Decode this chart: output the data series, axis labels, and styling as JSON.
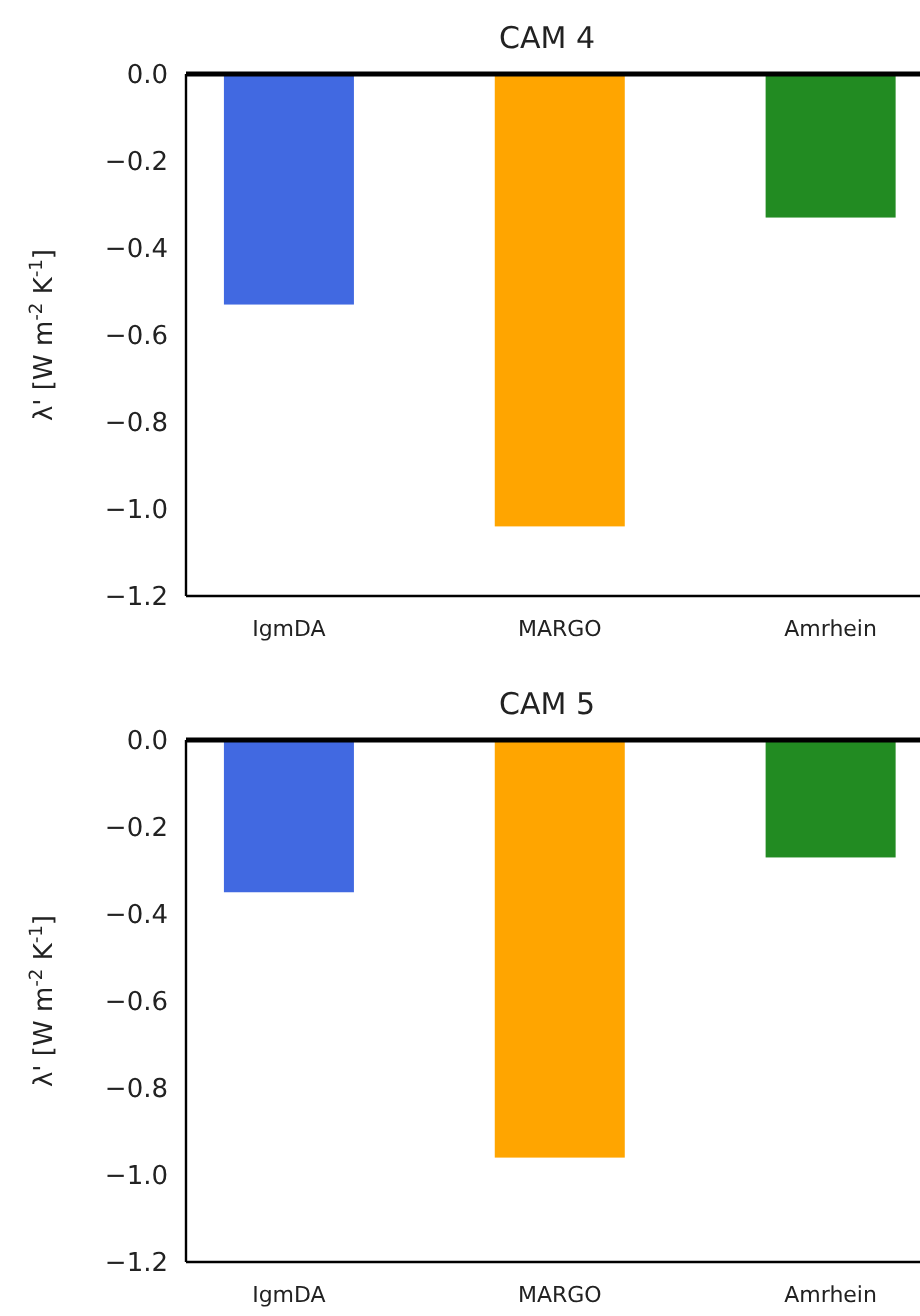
{
  "chart_data": [
    {
      "type": "bar",
      "title": "CAM 4",
      "ylabel": "λ' [W m$^{-2}$ K$^{-1}$]",
      "categories": [
        "IgmDA",
        "MARGO",
        "Amrhein"
      ],
      "values": [
        -0.53,
        -1.04,
        -0.33
      ],
      "colors": [
        "#4169e1",
        "#ffa500",
        "#228b22"
      ],
      "ylim": [
        -1.2,
        0
      ],
      "yticks": [
        {
          "value": 0,
          "label": "0.0"
        },
        {
          "value": -0.2,
          "label": "−0.2"
        },
        {
          "value": -0.4,
          "label": "−0.4"
        },
        {
          "value": -0.6,
          "label": "−0.6"
        },
        {
          "value": -0.8,
          "label": "−0.8"
        },
        {
          "value": -1,
          "label": "−1.0"
        },
        {
          "value": -1.2,
          "label": "−1.2"
        }
      ],
      "grid": false,
      "ref_lines": [
        {
          "axis": "y",
          "value": 0,
          "color": "#000000"
        }
      ]
    },
    {
      "type": "bar",
      "title": "CAM 5",
      "ylabel": "λ' [W m$^{-2}$ K$^{-1}$]",
      "categories": [
        "IgmDA",
        "MARGO",
        "Amrhein"
      ],
      "values": [
        -0.35,
        -0.96,
        -0.27
      ],
      "colors": [
        "#4169e1",
        "#ffa500",
        "#228b22"
      ],
      "ylim": [
        -1.2,
        0
      ],
      "yticks": [
        {
          "value": 0,
          "label": "0.0"
        },
        {
          "value": -0.2,
          "label": "−0.2"
        },
        {
          "value": -0.4,
          "label": "−0.4"
        },
        {
          "value": -0.6,
          "label": "−0.6"
        },
        {
          "value": -0.8,
          "label": "−0.8"
        },
        {
          "value": -1,
          "label": "−1.0"
        },
        {
          "value": -1.2,
          "label": "−1.2"
        }
      ],
      "grid": false,
      "ref_lines": [
        {
          "axis": "y",
          "value": 0,
          "color": "#000000"
        }
      ]
    }
  ]
}
